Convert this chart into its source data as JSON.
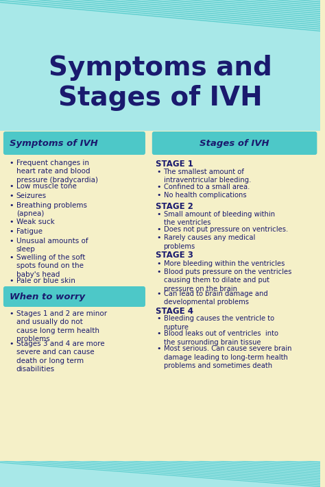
{
  "bg_color": "#f5f0c8",
  "header_bg": "#a8e8e8",
  "stripe_color1": "#5ecece",
  "stripe_color2": "#a8e8e8",
  "title": "Symptoms and\nStages of IVH",
  "title_color": "#1a1a6e",
  "section_header_bg": "#4dc8c8",
  "section_header_color": "#1a1a6e",
  "body_text_color": "#1a1a6e",
  "stage_header_color": "#1a1a6e",
  "left_header": "Symptoms of IVH",
  "right_header": "Stages of IVH",
  "worry_header": "When to worry",
  "symptoms": [
    "Frequent changes in\nheart rate and blood\npressure (bradycardia)",
    "Low muscle tone",
    "Seizures",
    "Breathing problems\n(apnea)",
    "Weak suck",
    "Fatigue",
    "Unusual amounts of\nsleep",
    "Swelling of the soft\nspots found on the\nbaby's head",
    "Pale or blue skin"
  ],
  "worry_items": [
    "Stages 1 and 2 are minor\nand usually do not\ncause long term health\nproblems",
    "Stages 3 and 4 are more\nsevere and can cause\ndeath or long term\ndisabilities"
  ],
  "stages": [
    {
      "label": "STAGE 1",
      "items": [
        "The smallest amount of\nintraventricular bleeding.",
        "Confined to a small area.",
        "No health complications"
      ]
    },
    {
      "label": "STAGE 2",
      "items": [
        "Small amount of bleeding within\nthe ventricles",
        "Does not put pressure on ventricles.",
        "Rarely causes any medical\nproblems"
      ]
    },
    {
      "label": "STAGE 3",
      "items": [
        "More bleeding within the ventricles",
        "Blood puts pressure on the ventricles\ncausing them to dilate and put\npressure on the brain",
        "Can lead to brain damage and\ndevelopmental problems"
      ]
    },
    {
      "label": "STAGE 4",
      "items": [
        "Bleeding causes the ventricle to\nrupture",
        "Blood leaks out of ventricles  into\nthe surrounding brain tissue",
        "Most serious. Can cause severe brain\ndamage leading to long-term health\nproblems and sometimes death"
      ]
    }
  ]
}
